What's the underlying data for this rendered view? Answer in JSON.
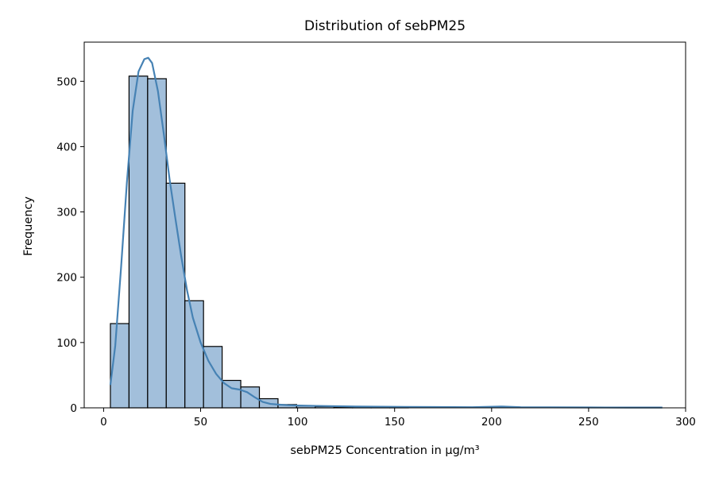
{
  "chart_data": {
    "type": "bar",
    "title": "Distribution of sebPM25",
    "xlabel": "sebPM25 Concentration in µg/m³",
    "ylabel": "Frequency",
    "xlim": [
      -10,
      300
    ],
    "ylim": [
      0,
      560
    ],
    "xticks": [
      0,
      50,
      100,
      150,
      200,
      250,
      300
    ],
    "yticks": [
      0,
      100,
      200,
      300,
      400,
      500
    ],
    "bins": [
      {
        "x0": 3.5,
        "x1": 13.1,
        "count": 129
      },
      {
        "x0": 13.1,
        "x1": 22.7,
        "count": 508
      },
      {
        "x0": 22.7,
        "x1": 32.3,
        "count": 504
      },
      {
        "x0": 32.3,
        "x1": 41.9,
        "count": 344
      },
      {
        "x0": 41.9,
        "x1": 51.5,
        "count": 164
      },
      {
        "x0": 51.5,
        "x1": 61.1,
        "count": 94
      },
      {
        "x0": 61.1,
        "x1": 70.7,
        "count": 42
      },
      {
        "x0": 70.7,
        "x1": 80.3,
        "count": 32
      },
      {
        "x0": 80.3,
        "x1": 89.9,
        "count": 14
      },
      {
        "x0": 89.9,
        "x1": 99.5,
        "count": 5
      },
      {
        "x0": 99.5,
        "x1": 109.1,
        "count": 3
      },
      {
        "x0": 109.1,
        "x1": 118.7,
        "count": 2
      },
      {
        "x0": 118.7,
        "x1": 128.3,
        "count": 1
      },
      {
        "x0": 128.3,
        "x1": 137.9,
        "count": 1
      },
      {
        "x0": 137.9,
        "x1": 147.5,
        "count": 1
      },
      {
        "x0": 147.5,
        "x1": 157.1,
        "count": 1
      }
    ],
    "kde": {
      "x": [
        3.5,
        6,
        9,
        12,
        15,
        18,
        21,
        23,
        25,
        28,
        31,
        34,
        37,
        40,
        43,
        46,
        50,
        54,
        58,
        62,
        66,
        70,
        74,
        78,
        82,
        86,
        90,
        95,
        100,
        110,
        120,
        130,
        150,
        170,
        190,
        205,
        215,
        230,
        250,
        270,
        288
      ],
      "y": [
        35,
        95,
        215,
        345,
        455,
        515,
        534,
        536,
        528,
        485,
        420,
        350,
        290,
        232,
        180,
        138,
        100,
        72,
        52,
        38,
        30,
        28,
        24,
        16,
        9,
        6,
        5,
        4,
        3.5,
        3,
        2.5,
        2,
        1.5,
        1.2,
        1,
        2,
        1,
        0.8,
        0.6,
        0.5,
        0.5
      ]
    },
    "colors": {
      "bar_fill": "#a2bfdb",
      "bar_edge": "#000000",
      "kde_line": "#4682b4"
    },
    "grid": false,
    "legend": "none"
  }
}
